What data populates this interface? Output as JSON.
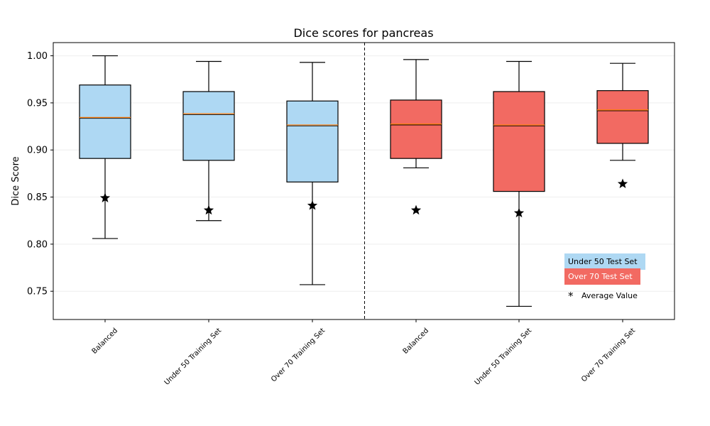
{
  "chart_data": {
    "type": "box",
    "title": "Dice scores for pancreas",
    "xlabel": "",
    "ylabel": "Dice Score",
    "ylim": [
      0.72,
      1.014
    ],
    "yticks": [
      0.75,
      0.8,
      0.85,
      0.9,
      0.95,
      1.0
    ],
    "ytick_labels": [
      "0.75",
      "0.80",
      "0.85",
      "0.90",
      "0.95",
      "1.00"
    ],
    "grid": true,
    "legend_position": "bottom-right",
    "categories": [
      "Balanced",
      "Under 50 Training Set",
      "Over 70 Training Set",
      "Balanced",
      "Under 50 Training Set",
      "Over 70 Training Set"
    ],
    "series": [
      {
        "name": "Under 50 Test Set",
        "color": "#aed8f3",
        "boxes": [
          {
            "category": "Balanced",
            "whisker_low": 0.806,
            "q1": 0.891,
            "median": 0.934,
            "q3": 0.969,
            "whisker_high": 1.0,
            "mean": 0.849
          },
          {
            "category": "Under 50 Training Set",
            "whisker_low": 0.825,
            "q1": 0.889,
            "median": 0.938,
            "q3": 0.962,
            "whisker_high": 0.994,
            "mean": 0.836
          },
          {
            "category": "Over 70 Training Set",
            "whisker_low": 0.757,
            "q1": 0.866,
            "median": 0.926,
            "q3": 0.952,
            "whisker_high": 0.993,
            "mean": 0.841
          }
        ]
      },
      {
        "name": "Over 70 Test Set",
        "color": "#f26a62",
        "boxes": [
          {
            "category": "Balanced",
            "whisker_low": 0.881,
            "q1": 0.891,
            "median": 0.927,
            "q3": 0.953,
            "whisker_high": 0.996,
            "mean": 0.836
          },
          {
            "category": "Under 50 Training Set",
            "whisker_low": 0.734,
            "q1": 0.856,
            "median": 0.926,
            "q3": 0.962,
            "whisker_high": 0.994,
            "mean": 0.833
          },
          {
            "category": "Over 70 Training Set",
            "whisker_low": 0.889,
            "q1": 0.907,
            "median": 0.942,
            "q3": 0.963,
            "whisker_high": 0.992,
            "mean": 0.864
          }
        ]
      }
    ],
    "legend": {
      "under50": "Under 50 Test Set",
      "over70": "Over 70 Test Set",
      "mean_marker": "*",
      "mean_label": "Average Value"
    },
    "colors": {
      "median_line": "#ff7f0e",
      "separator": "#000000"
    }
  }
}
